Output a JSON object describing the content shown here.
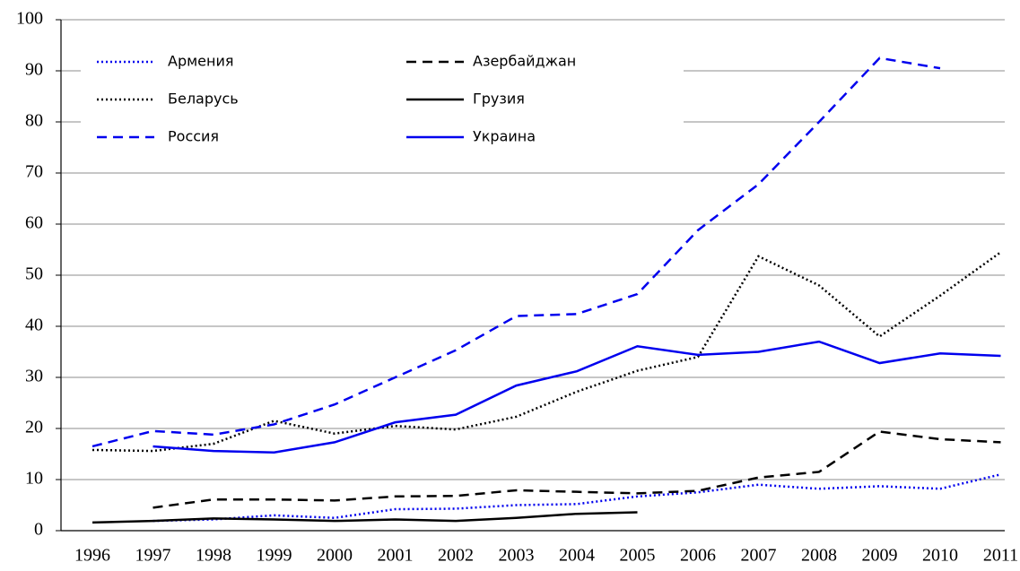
{
  "chart_data": {
    "type": "line",
    "categories": [
      "1996",
      "1997",
      "1998",
      "1999",
      "2000",
      "2001",
      "2002",
      "2003",
      "2004",
      "2005",
      "2006",
      "2007",
      "2008",
      "2009",
      "2010",
      "2011"
    ],
    "ylim": [
      0,
      100
    ],
    "yticks": [
      0,
      10,
      20,
      30,
      40,
      50,
      60,
      70,
      80,
      90,
      100
    ],
    "grid": true,
    "series": [
      {
        "name": "Армения",
        "color": "#0000ee",
        "style": "dotted",
        "values": [
          null,
          1.9,
          2.2,
          3.0,
          2.5,
          4.2,
          4.3,
          5.0,
          5.2,
          6.7,
          7.5,
          9.0,
          8.2,
          8.7,
          8.2,
          11.0
        ]
      },
      {
        "name": "Азербайджан",
        "color": "#000000",
        "style": "dashed",
        "values": [
          null,
          4.5,
          6.1,
          6.1,
          5.9,
          6.7,
          6.8,
          7.9,
          7.6,
          7.3,
          7.8,
          10.4,
          11.5,
          19.4,
          17.9,
          17.3
        ]
      },
      {
        "name": "Беларусь",
        "color": "#000000",
        "style": "dotted",
        "values": [
          15.8,
          15.6,
          17.0,
          21.5,
          19.0,
          20.5,
          19.8,
          22.3,
          27.2,
          31.3,
          34.0,
          53.7,
          48.0,
          38.0,
          46.0,
          54.5
        ]
      },
      {
        "name": "Грузия",
        "color": "#000000",
        "style": "solid",
        "values": [
          1.6,
          1.9,
          2.4,
          2.2,
          1.9,
          2.2,
          1.9,
          2.5,
          3.3,
          3.6,
          null,
          null,
          null,
          null,
          null,
          null
        ]
      },
      {
        "name": "Россия",
        "color": "#0000ee",
        "style": "dashed",
        "values": [
          16.5,
          19.5,
          18.8,
          20.8,
          24.7,
          30.0,
          35.3,
          42.0,
          42.4,
          46.3,
          58.8,
          67.8,
          80.0,
          92.5,
          90.5,
          null
        ]
      },
      {
        "name": "Украина",
        "color": "#0000ee",
        "style": "solid",
        "values": [
          null,
          16.5,
          15.6,
          15.3,
          17.3,
          21.2,
          22.7,
          28.4,
          31.2,
          36.1,
          34.4,
          35.0,
          37.0,
          32.8,
          34.7,
          34.2
        ]
      }
    ]
  }
}
